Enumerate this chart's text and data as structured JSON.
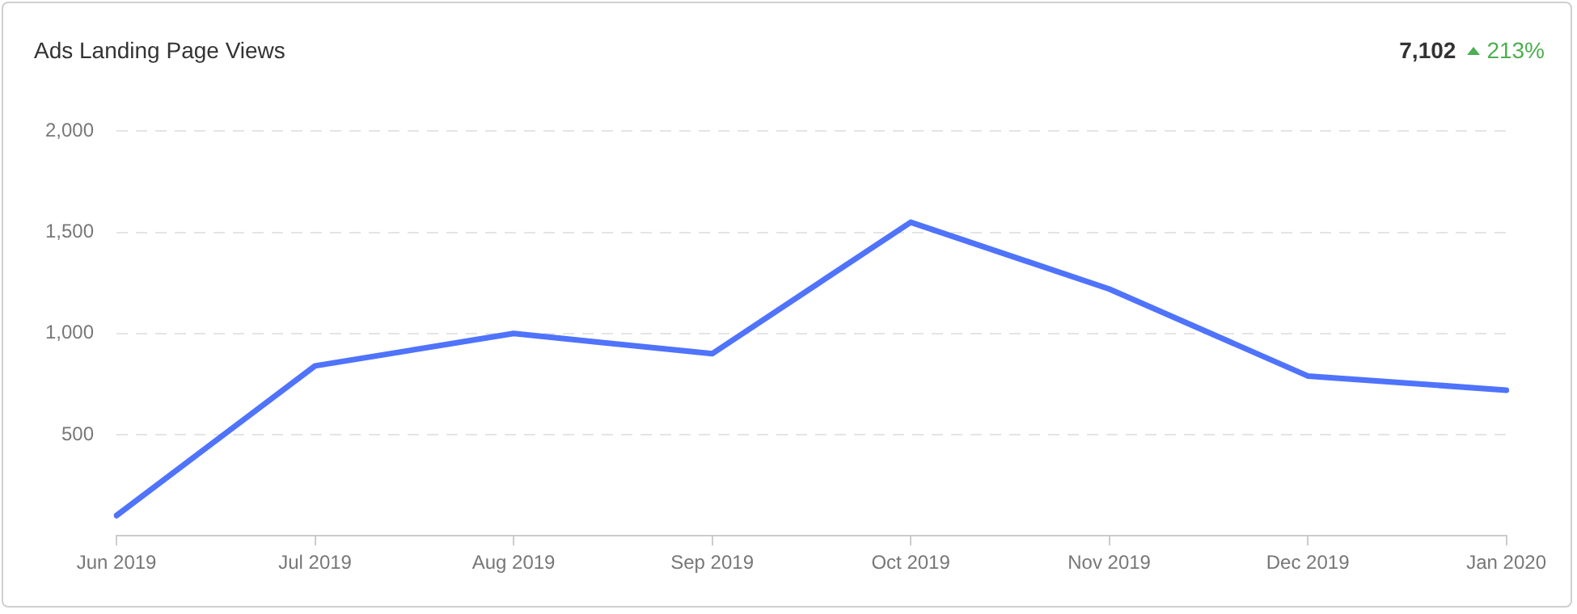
{
  "chart_data": {
    "type": "line",
    "title": "Ads Landing Page Views",
    "annotations": [
      "7,102",
      "213%"
    ],
    "categories": [
      "Jun 2019",
      "Jul 2019",
      "Aug 2019",
      "Sep 2019",
      "Oct 2019",
      "Nov 2019",
      "Dec 2019",
      "Jan 2020"
    ],
    "series": [
      {
        "color": "#4f73fb",
        "values": [
          100,
          840,
          1000,
          900,
          1550,
          1220,
          790,
          720
        ]
      }
    ],
    "ylim": [
      0,
      2000
    ],
    "yticks": [
      500,
      {
        "value": 1000,
        "label": "1,000"
      },
      {
        "value": 1500,
        "label": "1,500"
      },
      {
        "value": 2000,
        "label": "2,000"
      }
    ],
    "grid": "y",
    "legend": false,
    "marker": "none",
    "line_style": "solid"
  }
}
